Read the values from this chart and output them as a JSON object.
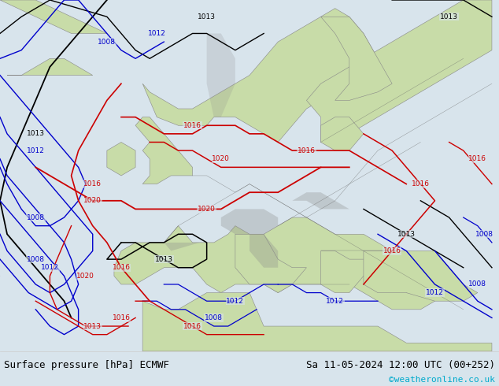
{
  "title_left": "Surface pressure [hPa] ECMWF",
  "title_right": "Sa 11-05-2024 12:00 UTC (00+252)",
  "copyright": "©weatheronline.co.uk",
  "ocean_color": "#d8e4ec",
  "land_color": "#c8dca8",
  "land_outline": "#888888",
  "bottom_bar_color": "#ffffff",
  "text_color_black": "#000000",
  "text_color_blue": "#0000cc",
  "text_color_red": "#cc0000",
  "text_color_cyan": "#00aacc",
  "figsize": [
    6.34,
    4.9
  ],
  "dpi": 100,
  "map_extent": [
    -25,
    45,
    30,
    72
  ]
}
